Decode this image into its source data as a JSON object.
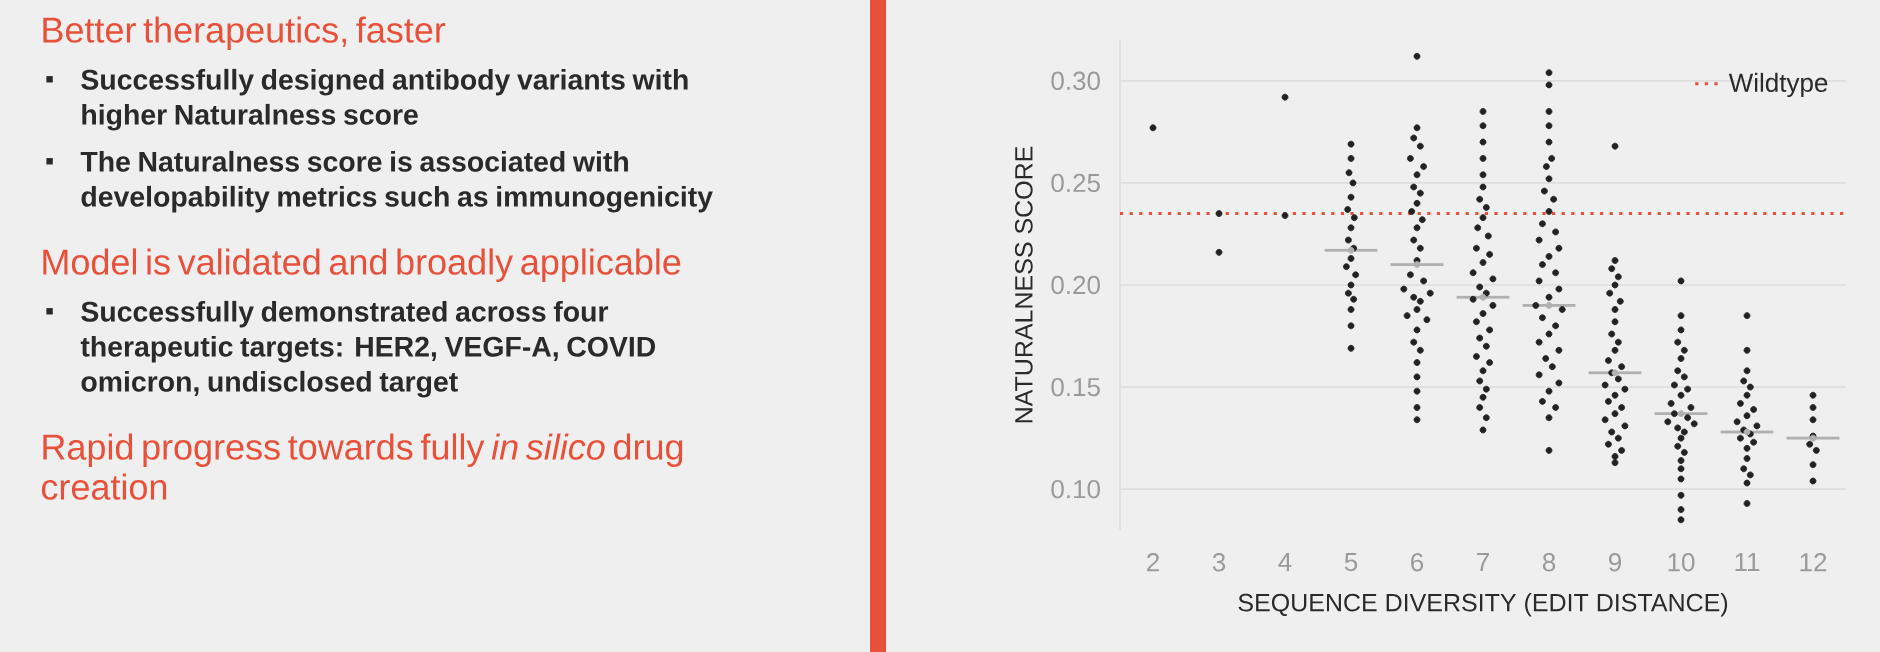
{
  "chart_data": {
    "type": "scatter",
    "xlabel": "SEQUENCE DIVERSITY (EDIT DISTANCE)",
    "ylabel": "NATURALNESS SCORE",
    "xlim": [
      1.5,
      12.5
    ],
    "ylim": [
      0.08,
      0.32
    ],
    "xticks": [
      2,
      3,
      4,
      5,
      6,
      7,
      8,
      9,
      10,
      11,
      12
    ],
    "yticks": [
      {
        "value": 0.1,
        "label": "0.10"
      },
      {
        "value": 0.15,
        "label": "0.15"
      },
      {
        "value": 0.2,
        "label": "0.20"
      },
      {
        "value": 0.25,
        "label": "0.25"
      },
      {
        "value": 0.3,
        "label": "0.30"
      }
    ],
    "grid": "y",
    "legend": "top right",
    "ref_lines": [
      {
        "axis": "y",
        "value": 0.235,
        "label": "Wildtype",
        "color": "#e8503a",
        "line_style": "dotted"
      }
    ],
    "annotations": [
      "Better therapeutics, faster",
      "Successfully designed antibody variants with higher Naturalness score",
      "The Naturalness score is associated with developability metrics such as immunogenicity",
      "Model is validated and broadly applicable",
      "Successfully demonstrated across four therapeutic targets: HER2, VEGF-A, COVID omicron, undisclosed target",
      "Rapid progress towards fully *in silico* drug creation"
    ],
    "series": [
      {
        "color": "#222222",
        "x": [
          2,
          3,
          3,
          4,
          4,
          5,
          5,
          4.97,
          5.03,
          5,
          4.95,
          5.05,
          5,
          4.96,
          5.04,
          5,
          4.93,
          5.07,
          5,
          4.96,
          5.04,
          5,
          5,
          5,
          6,
          6,
          5.95,
          6.05,
          5.9,
          6.1,
          6,
          5.95,
          6.05,
          6,
          5.92,
          6.08,
          6,
          5.95,
          6.05,
          6,
          5.9,
          6.1,
          5.8,
          6.2,
          5.95,
          6.05,
          6,
          5.85,
          6.15,
          6,
          5.95,
          6.05,
          6,
          6,
          6,
          6,
          6,
          7,
          7,
          7,
          7,
          7,
          7,
          6.95,
          7.05,
          7,
          6.92,
          7.08,
          6.9,
          7.1,
          7,
          6.85,
          7.15,
          6.95,
          7.05,
          6.85,
          7.15,
          7,
          6.9,
          7.1,
          6.95,
          7.05,
          6.9,
          7.1,
          7,
          6.95,
          7.05,
          7,
          6.95,
          7.05,
          7,
          8,
          8,
          8,
          8,
          8,
          8.04,
          7.96,
          8,
          7.93,
          8.07,
          8,
          7.9,
          8.1,
          7.85,
          8.15,
          8,
          7.9,
          8.1,
          7.85,
          8.15,
          8,
          7.8,
          8.2,
          7.9,
          8.1,
          8,
          7.85,
          8.15,
          7.95,
          8.05,
          7.85,
          8.15,
          8,
          7.9,
          8.1,
          8,
          8,
          9,
          9,
          8.95,
          9.05,
          9,
          8.92,
          9.08,
          9,
          9,
          8.95,
          9.05,
          9,
          8.9,
          9.1,
          8.95,
          9.05,
          8.85,
          9.15,
          9,
          8.9,
          9.1,
          9,
          8.85,
          9.15,
          8.95,
          9.05,
          8.9,
          9.1,
          9,
          9,
          10,
          10,
          10,
          9.95,
          10.05,
          10,
          9.95,
          10.05,
          9.9,
          10.1,
          10,
          9.85,
          10.15,
          9.9,
          10.1,
          9.8,
          10.2,
          9.95,
          10.05,
          10,
          9.95,
          10.05,
          10,
          10,
          10,
          10,
          10,
          10,
          11,
          11,
          11,
          10.95,
          11.05,
          11,
          10.9,
          11.1,
          11,
          10.85,
          11.15,
          10.95,
          11.05,
          10.9,
          11.1,
          11,
          11,
          10.95,
          11.05,
          11,
          11,
          12,
          12,
          12,
          12,
          11.95,
          12.05,
          12,
          12
        ],
        "values": [
          0.277,
          0.235,
          0.216,
          0.292,
          0.234,
          0.269,
          0.262,
          0.255,
          0.25,
          0.243,
          0.237,
          0.233,
          0.228,
          0.222,
          0.218,
          0.213,
          0.209,
          0.205,
          0.2,
          0.196,
          0.193,
          0.188,
          0.18,
          0.169,
          0.312,
          0.277,
          0.272,
          0.268,
          0.262,
          0.258,
          0.254,
          0.248,
          0.245,
          0.24,
          0.236,
          0.232,
          0.228,
          0.222,
          0.218,
          0.212,
          0.205,
          0.202,
          0.198,
          0.196,
          0.194,
          0.192,
          0.188,
          0.185,
          0.183,
          0.178,
          0.172,
          0.168,
          0.162,
          0.155,
          0.148,
          0.14,
          0.134,
          0.285,
          0.278,
          0.27,
          0.262,
          0.254,
          0.248,
          0.242,
          0.238,
          0.233,
          0.228,
          0.224,
          0.218,
          0.215,
          0.211,
          0.206,
          0.203,
          0.199,
          0.196,
          0.193,
          0.19,
          0.186,
          0.182,
          0.178,
          0.174,
          0.17,
          0.165,
          0.162,
          0.158,
          0.153,
          0.149,
          0.145,
          0.14,
          0.135,
          0.129,
          0.304,
          0.298,
          0.285,
          0.278,
          0.27,
          0.262,
          0.258,
          0.252,
          0.246,
          0.242,
          0.236,
          0.23,
          0.226,
          0.222,
          0.218,
          0.214,
          0.21,
          0.206,
          0.202,
          0.198,
          0.194,
          0.19,
          0.188,
          0.184,
          0.18,
          0.176,
          0.172,
          0.168,
          0.164,
          0.16,
          0.156,
          0.152,
          0.148,
          0.143,
          0.14,
          0.135,
          0.119,
          0.268,
          0.212,
          0.208,
          0.204,
          0.2,
          0.196,
          0.192,
          0.188,
          0.182,
          0.176,
          0.172,
          0.168,
          0.163,
          0.16,
          0.157,
          0.154,
          0.151,
          0.149,
          0.146,
          0.143,
          0.14,
          0.137,
          0.134,
          0.131,
          0.128,
          0.125,
          0.122,
          0.119,
          0.116,
          0.113,
          0.202,
          0.185,
          0.178,
          0.172,
          0.168,
          0.164,
          0.158,
          0.155,
          0.151,
          0.149,
          0.146,
          0.142,
          0.14,
          0.137,
          0.135,
          0.133,
          0.132,
          0.13,
          0.128,
          0.125,
          0.121,
          0.118,
          0.114,
          0.11,
          0.105,
          0.097,
          0.09,
          0.085,
          0.185,
          0.168,
          0.158,
          0.153,
          0.15,
          0.146,
          0.142,
          0.139,
          0.136,
          0.133,
          0.131,
          0.129,
          0.127,
          0.125,
          0.123,
          0.12,
          0.115,
          0.11,
          0.107,
          0.103,
          0.093,
          0.146,
          0.14,
          0.134,
          0.126,
          0.122,
          0.119,
          0.112,
          0.104
        ]
      },
      {
        "color": "#b0b0b0",
        "x": [
          5,
          6,
          7,
          8,
          9,
          10,
          11,
          12
        ],
        "values": [
          0.217,
          0.21,
          0.194,
          0.19,
          0.157,
          0.137,
          0.128,
          0.125
        ],
        "xerrors": [
          0.4,
          0.4,
          0.4,
          0.4,
          0.4,
          0.4,
          0.4,
          0.4
        ]
      }
    ]
  }
}
